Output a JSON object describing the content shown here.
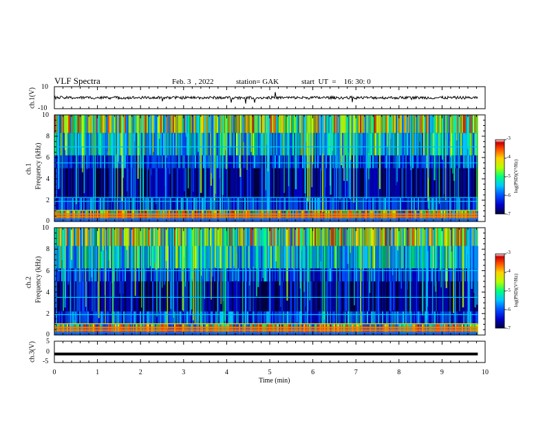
{
  "header": {
    "title": "VLF Spectra",
    "date": "Feb. 3  , 2022",
    "station": "station= GAK",
    "start": "start  UT  =    16: 30: 0"
  },
  "panels": {
    "ch1_wave_label": "ch.1(V)",
    "ch1_wave_ticks": [
      "10",
      "-10"
    ],
    "ch1_spec_label_a": "ch.1",
    "ch1_spec_label_b": "Frequency  (kHz)",
    "ch2_spec_label_a": "ch.2",
    "ch2_spec_label_b": "Frequency  (kHz)",
    "freq_ticks": [
      "10",
      "8",
      "6",
      "4",
      "2",
      "0"
    ],
    "ch3_wave_label": "ch.3(V)",
    "ch3_wave_ticks": [
      "5",
      "0",
      "-5"
    ]
  },
  "xaxis": {
    "label": "Time  (min)",
    "ticks": [
      "0",
      "1",
      "2",
      "3",
      "4",
      "5",
      "6",
      "7",
      "8",
      "9",
      "10"
    ]
  },
  "colorbar": {
    "label": "log(PSD)(V²/Hz)",
    "ticks": [
      "-3",
      "-4",
      "-5",
      "-6",
      "-7"
    ],
    "colors": [
      "#000040",
      "#0000c8",
      "#0050ff",
      "#00c8ff",
      "#00ff80",
      "#b4ff00",
      "#ffd200",
      "#ff5000",
      "#c80000",
      "#ffffff"
    ]
  },
  "chart_data": [
    {
      "type": "line",
      "title": "VLF Spectra",
      "ylabel": "ch.1(V)",
      "xlabel": "Time  (min)",
      "xlim": [
        0,
        10
      ],
      "ylim": [
        -10,
        10
      ],
      "series": [
        {
          "values_description_level": 0
        }
      ],
      "data_extent_x": [
        0,
        9.83
      ]
    },
    {
      "type": "heatmap",
      "ylabel": "Frequency  (kHz)",
      "panel": "ch.1",
      "xlim": [
        0,
        10
      ],
      "ylim": [
        0,
        10
      ],
      "zlabel": "log(PSD)(V²/Hz)",
      "zlim": [
        -7,
        -3
      ],
      "horizontal_lines_khz": [
        0.25,
        0.45,
        0.7,
        1.05,
        1.9,
        2.25,
        5.5,
        7.0
      ],
      "data_extent_x": [
        0,
        9.83
      ]
    },
    {
      "type": "heatmap",
      "ylabel": "Frequency  (kHz)",
      "panel": "ch.2",
      "xlim": [
        0,
        10
      ],
      "ylim": [
        0,
        10
      ],
      "zlabel": "log(PSD)(V²/Hz)",
      "zlim": [
        -7,
        -3
      ],
      "horizontal_lines_khz": [
        0.25,
        0.45,
        0.7,
        1.05,
        1.9,
        3.5,
        6.0
      ],
      "data_extent_x": [
        0,
        9.83
      ]
    },
    {
      "type": "line",
      "ylabel": "ch.3(V)",
      "xlabel": "Time  (min)",
      "xlim": [
        0,
        10
      ],
      "ylim": [
        -5,
        5
      ],
      "series": [
        {
          "constant_value": -1
        }
      ],
      "data_extent_x": [
        0,
        9.83
      ]
    }
  ]
}
